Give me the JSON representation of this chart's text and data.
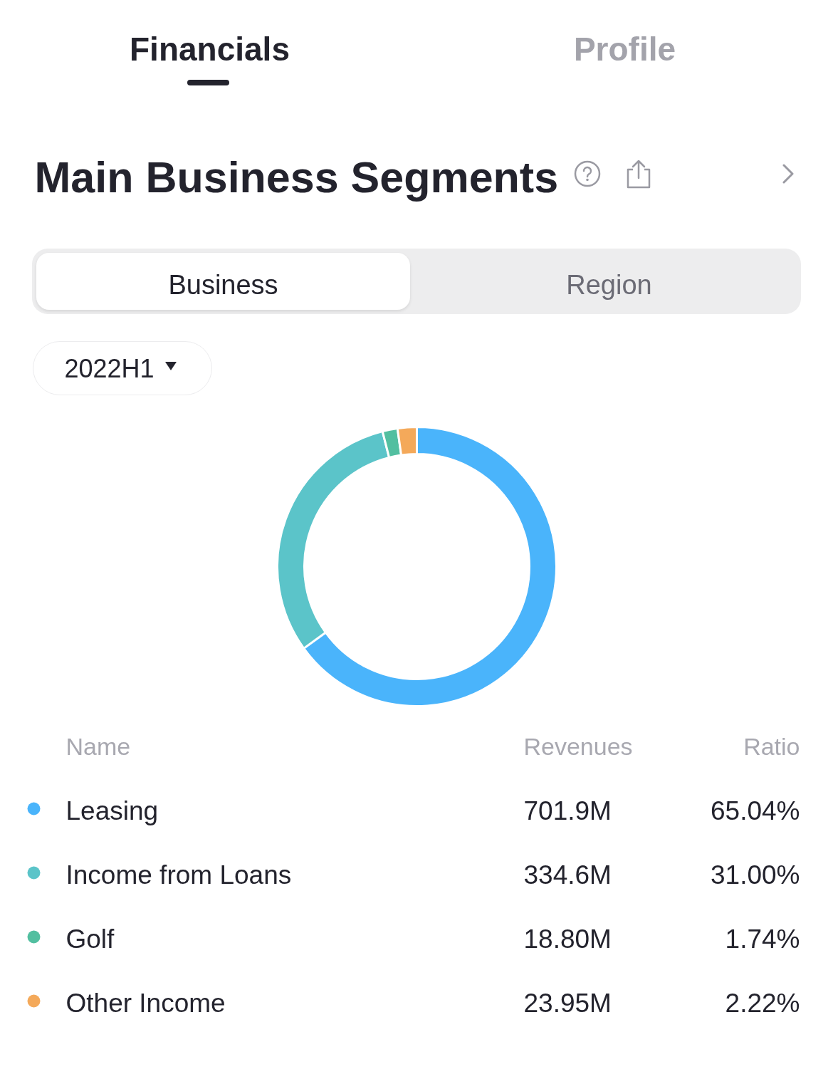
{
  "chart_data": {
    "type": "donut",
    "title": "Main Business Segments",
    "subtitle": "2022H1",
    "categories": [
      "Leasing",
      "Income from Loans",
      "Golf",
      "Other Income"
    ],
    "values": [
      701.9,
      334.6,
      18.8,
      23.95
    ],
    "value_labels": [
      "701.9M",
      "334.6M",
      "18.80M",
      "23.95M"
    ],
    "colors": [
      "#4ab4fb",
      "#5bc4c9",
      "#52bfa0",
      "#f4a95a"
    ],
    "legend": "bottom",
    "legend_title": "Name",
    "annotations": [
      "Financials",
      "Profile",
      "Business",
      "Region",
      "Revenues",
      "Ratio",
      "65.04%",
      "31.00%",
      "1.74%",
      "2.22%"
    ]
  }
}
